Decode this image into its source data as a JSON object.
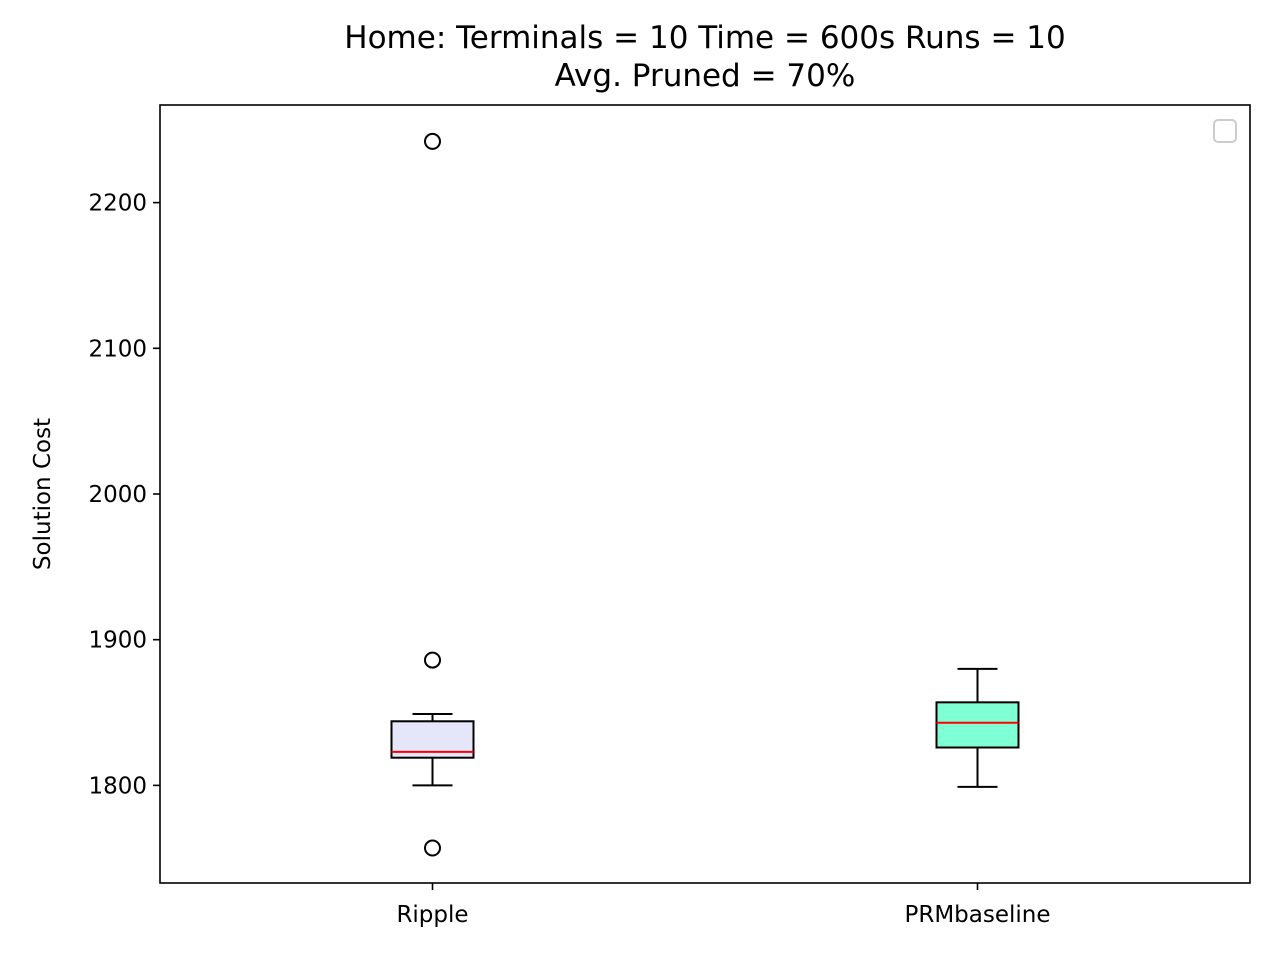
{
  "chart_data": {
    "type": "box",
    "title": "Home:  Terminals = 10  Time = 600s  Runs = 10",
    "subtitle": "Avg. Pruned = 70%",
    "xlabel": "",
    "ylabel": "Solution Cost",
    "ylim": [
      1733,
      2267
    ],
    "yticks": [
      1800,
      1900,
      2000,
      2100,
      2200
    ],
    "grid": false,
    "legend": {
      "placement": "top-right",
      "entries": []
    },
    "categories": [
      "Ripple",
      "PRMbaseline"
    ],
    "boxes": [
      {
        "category": "Ripple",
        "whisker_low": 1800,
        "q1": 1819,
        "median": 1823,
        "q3": 1844,
        "whisker_high": 1849,
        "outliers": [
          2242,
          1886,
          1757
        ],
        "fill": "#e6e6fa"
      },
      {
        "category": "PRMbaseline",
        "whisker_low": 1799,
        "q1": 1826,
        "median": 1843,
        "q3": 1857,
        "whisker_high": 1880,
        "outliers": [],
        "fill": "#7fffd4"
      }
    ],
    "median_color": "#ff0000",
    "frame_color": "#000000",
    "legend_border_color": "#cccccc"
  }
}
